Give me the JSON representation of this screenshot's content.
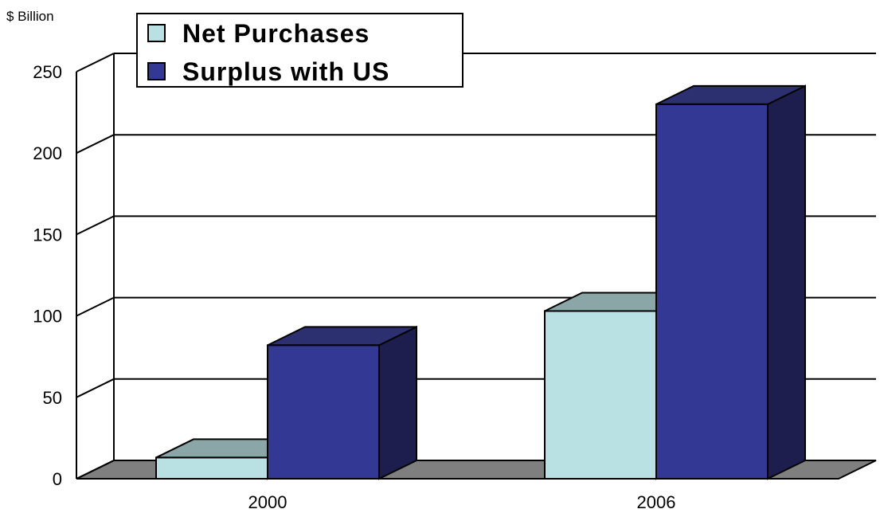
{
  "chart_data": {
    "type": "bar",
    "ylabel": "$ Billion",
    "categories": [
      "2000",
      "2006"
    ],
    "series": [
      {
        "name": "Net Purchases",
        "values": [
          13,
          103
        ],
        "color": "#b9e0e2",
        "top_color": "#8aa6a6",
        "side_color": "#8aa6a6"
      },
      {
        "name": "Surplus with US",
        "values": [
          82,
          230
        ],
        "color": "#323894",
        "top_color": "#2c2f70",
        "side_color": "#1e1e4e"
      }
    ],
    "ylim": [
      0,
      250
    ],
    "yticks": [
      0,
      50,
      100,
      150,
      200,
      250
    ],
    "grid": true,
    "legend_position": "top-left",
    "floor_color": "#7f7f7f"
  }
}
